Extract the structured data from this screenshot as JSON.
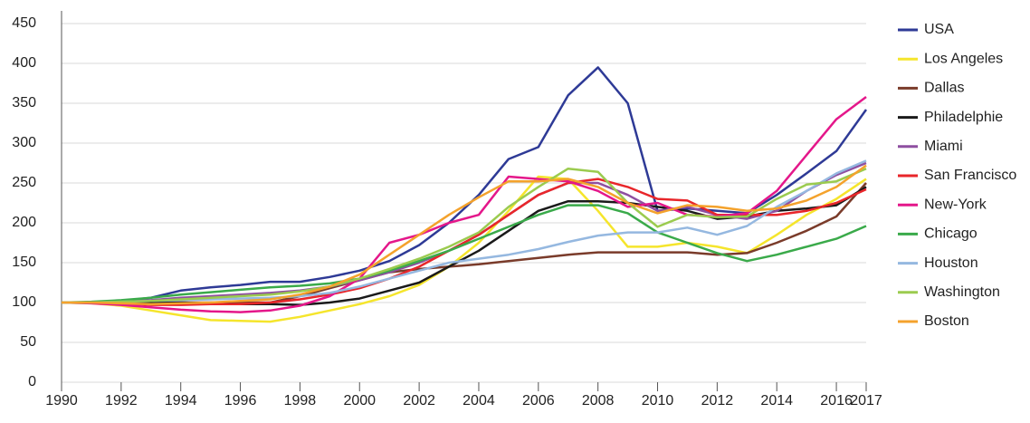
{
  "chart_data": {
    "type": "line",
    "x": [
      1990,
      1991,
      1992,
      1993,
      1994,
      1995,
      1996,
      1997,
      1998,
      1999,
      2000,
      2001,
      2002,
      2003,
      2004,
      2005,
      2006,
      2007,
      2008,
      2009,
      2010,
      2011,
      2012,
      2013,
      2014,
      2015,
      2016,
      2017
    ],
    "xlim": [
      1990,
      2017
    ],
    "xticks": [
      1990,
      1992,
      1994,
      1996,
      1998,
      2000,
      2002,
      2004,
      2006,
      2008,
      2010,
      2012,
      2014,
      2016,
      2017
    ],
    "ylim": [
      0,
      450
    ],
    "yticks": [
      0,
      50,
      100,
      150,
      200,
      250,
      300,
      350,
      400,
      450
    ],
    "grid": true,
    "legend": "right",
    "series": [
      {
        "name": "USA",
        "color": "#2e3a96",
        "values": [
          100,
          100,
          102,
          106,
          115,
          119,
          122,
          126,
          126,
          132,
          140,
          152,
          172,
          200,
          235,
          280,
          295,
          360,
          395,
          350,
          215,
          218,
          215,
          212,
          235,
          262,
          290,
          342
        ]
      },
      {
        "name": "Los Angeles",
        "color": "#f5e52c",
        "values": [
          100,
          99,
          96,
          90,
          84,
          78,
          77,
          76,
          82,
          90,
          98,
          108,
          122,
          145,
          175,
          215,
          258,
          255,
          215,
          170,
          170,
          175,
          170,
          162,
          185,
          210,
          230,
          255
        ]
      },
      {
        "name": "Dallas",
        "color": "#7a3b2a",
        "values": [
          100,
          100,
          100,
          100,
          100,
          100,
          100,
          100,
          108,
          118,
          128,
          138,
          142,
          145,
          148,
          152,
          156,
          160,
          163,
          163,
          163,
          163,
          160,
          162,
          175,
          190,
          208,
          250
        ]
      },
      {
        "name": "Philadelphie",
        "color": "#1a1a1a",
        "values": [
          100,
          100,
          100,
          100,
          100,
          99,
          98,
          98,
          97,
          100,
          105,
          115,
          125,
          145,
          165,
          190,
          215,
          227,
          227,
          225,
          220,
          215,
          205,
          208,
          215,
          218,
          222,
          245
        ]
      },
      {
        "name": "Miami",
        "color": "#8e4fa0",
        "values": [
          100,
          100,
          101,
          103,
          106,
          108,
          110,
          112,
          115,
          120,
          128,
          138,
          150,
          165,
          185,
          210,
          235,
          250,
          250,
          235,
          215,
          220,
          210,
          205,
          215,
          240,
          260,
          275
        ]
      },
      {
        "name": "San Francisco",
        "color": "#e8262a",
        "values": [
          100,
          100,
          99,
          97,
          97,
          98,
          98,
          100,
          104,
          110,
          118,
          130,
          145,
          165,
          185,
          210,
          235,
          250,
          255,
          245,
          230,
          228,
          210,
          210,
          210,
          215,
          225,
          242
        ]
      },
      {
        "name": "New-York",
        "color": "#e4178a",
        "values": [
          100,
          99,
          97,
          94,
          91,
          89,
          88,
          90,
          96,
          108,
          130,
          175,
          185,
          200,
          210,
          258,
          255,
          252,
          240,
          220,
          225,
          210,
          208,
          212,
          240,
          285,
          330,
          358
        ]
      },
      {
        "name": "Chicago",
        "color": "#3aaa4a",
        "values": [
          100,
          101,
          103,
          106,
          110,
          113,
          116,
          119,
          121,
          124,
          130,
          140,
          152,
          165,
          180,
          195,
          210,
          222,
          222,
          212,
          188,
          175,
          162,
          152,
          160,
          170,
          180,
          196
        ]
      },
      {
        "name": "Houston",
        "color": "#95b8e0",
        "values": [
          100,
          100,
          101,
          102,
          103,
          104,
          105,
          106,
          108,
          112,
          120,
          130,
          140,
          150,
          155,
          160,
          167,
          176,
          184,
          188,
          188,
          194,
          185,
          196,
          220,
          240,
          262,
          278
        ]
      },
      {
        "name": "Washington",
        "color": "#9bcb4f",
        "values": [
          100,
          100,
          101,
          102,
          104,
          106,
          108,
          110,
          114,
          120,
          130,
          142,
          155,
          170,
          188,
          220,
          245,
          268,
          264,
          225,
          195,
          210,
          207,
          208,
          230,
          248,
          252,
          268
        ]
      },
      {
        "name": "Boston",
        "color": "#f4a22c",
        "values": [
          100,
          100,
          99,
          98,
          99,
          100,
          102,
          104,
          110,
          120,
          135,
          160,
          185,
          210,
          232,
          252,
          252,
          255,
          245,
          225,
          212,
          222,
          220,
          215,
          218,
          228,
          245,
          272
        ]
      }
    ]
  }
}
